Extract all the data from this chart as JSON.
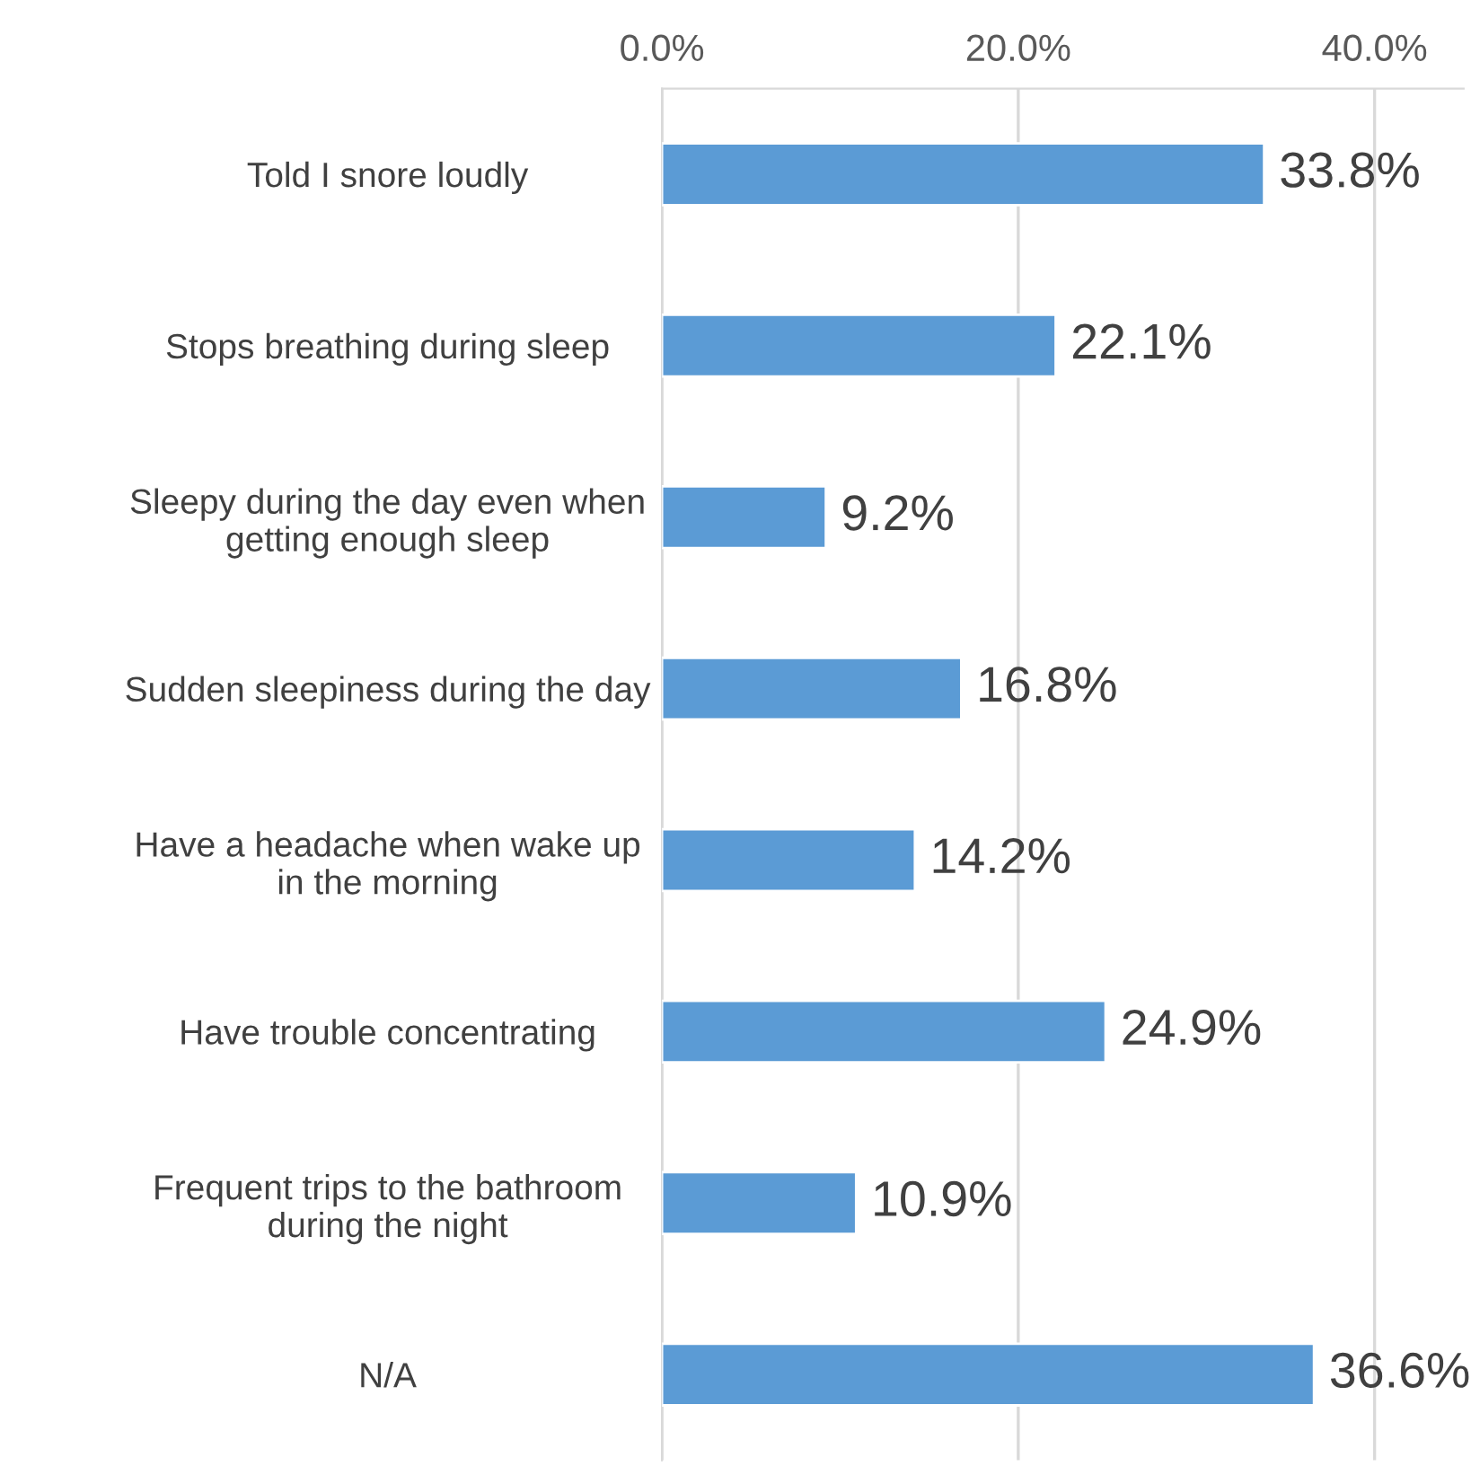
{
  "chart_data": {
    "type": "bar",
    "orientation": "horizontal",
    "categories": [
      "Told I snore loudly",
      "Stops breathing during sleep",
      "Sleepy during the day even when\ngetting enough sleep",
      "Sudden sleepiness during the day",
      "Have a headache when wake up\nin the morning",
      "Have trouble concentrating",
      "Frequent trips to the bathroom\nduring the night",
      "N/A"
    ],
    "values": [
      33.8,
      22.1,
      9.2,
      16.8,
      14.2,
      24.9,
      10.9,
      36.6
    ],
    "value_labels": [
      "33.8%",
      "22.1%",
      "9.2%",
      "16.8%",
      "14.2%",
      "24.9%",
      "10.9%",
      "36.6%"
    ],
    "color": "#5b9bd5",
    "xlim": [
      0,
      45
    ],
    "xticks": [
      {
        "value": 0,
        "label": "0.0%"
      },
      {
        "value": 20,
        "label": "20.0%"
      },
      {
        "value": 40,
        "label": "40.0%"
      }
    ],
    "grid": "x",
    "legend": false
  }
}
